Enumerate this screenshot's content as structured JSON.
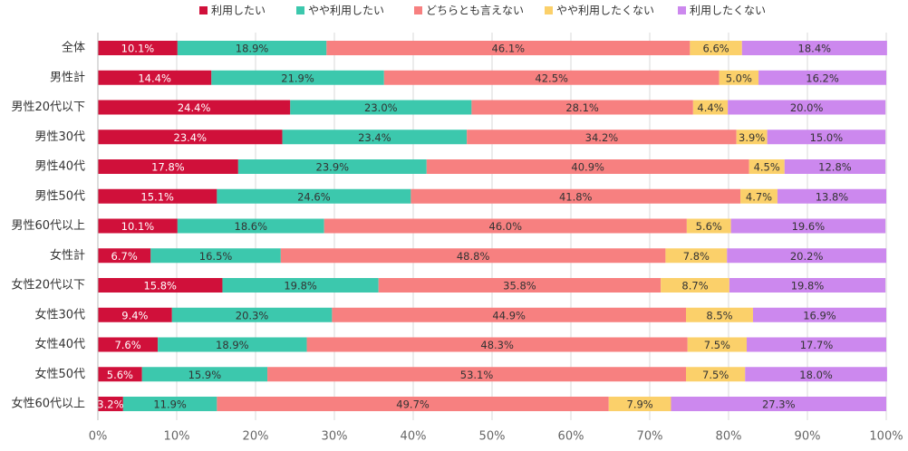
{
  "chart_data": {
    "type": "stacked_bar_horizontal",
    "categories": [
      "全体",
      "男性計",
      "男性20代以下",
      "男性30代",
      "男性40代",
      "男性50代",
      "男性60代以上",
      "女性計",
      "女性20代以下",
      "女性30代",
      "女性40代",
      "女性50代",
      "女性60代以上"
    ],
    "series": [
      {
        "name": "利用したい",
        "color": "#d0103a",
        "values": [
          10.1,
          14.4,
          24.4,
          23.4,
          17.8,
          15.1,
          10.1,
          6.7,
          15.8,
          9.4,
          7.6,
          5.6,
          3.2
        ],
        "value_labels": [
          "10.1%",
          "14.4%",
          "24.4%",
          "23.4%",
          "17.8%",
          "15.1%",
          "10.1%",
          "6.7%",
          "15.8%",
          "9.4%",
          "7.6%",
          "5.6%",
          "3.2%"
        ]
      },
      {
        "name": "やや利用したい",
        "color": "#3cc8ad",
        "values": [
          18.9,
          21.9,
          23.0,
          23.4,
          23.9,
          24.6,
          18.6,
          16.5,
          19.8,
          20.3,
          18.9,
          15.9,
          11.9
        ],
        "value_labels": [
          "18.9%",
          "21.9%",
          "23.0%",
          "23.4%",
          "23.9%",
          "24.6%",
          "18.6%",
          "16.5%",
          "19.8%",
          "20.3%",
          "18.9%",
          "15.9%",
          "11.9%"
        ]
      },
      {
        "name": "どちらとも言えない",
        "color": "#f78080",
        "values": [
          46.1,
          42.5,
          28.1,
          34.2,
          40.9,
          41.8,
          46.0,
          48.8,
          35.8,
          44.9,
          48.3,
          53.1,
          49.7
        ],
        "value_labels": [
          "46.1%",
          "42.5%",
          "28.1%",
          "34.2%",
          "40.9%",
          "41.8%",
          "46.0%",
          "48.8%",
          "35.8%",
          "44.9%",
          "48.3%",
          "53.1%",
          "49.7%"
        ]
      },
      {
        "name": "やや利用したくない",
        "color": "#fbd06a",
        "values": [
          6.6,
          5.0,
          4.4,
          3.9,
          4.5,
          4.7,
          5.6,
          7.8,
          8.7,
          8.5,
          7.5,
          7.5,
          7.9
        ],
        "value_labels": [
          "6.6%",
          "5.0%",
          "4.4%",
          "3.9%",
          "4.5%",
          "4.7%",
          "5.6%",
          "7.8%",
          "8.7%",
          "8.5%",
          "7.5%",
          "7.5%",
          "7.9%"
        ]
      },
      {
        "name": "利用したくない",
        "color": "#cc88ee",
        "values": [
          18.4,
          16.2,
          20.0,
          15.0,
          12.8,
          13.8,
          19.6,
          20.2,
          19.8,
          16.9,
          17.7,
          18.0,
          27.3
        ],
        "value_labels": [
          "18.4%",
          "16.2%",
          "20.0%",
          "15.0%",
          "12.8%",
          "13.8%",
          "19.6%",
          "20.2%",
          "19.8%",
          "16.9%",
          "17.7%",
          "18.0%",
          "27.3%"
        ]
      }
    ],
    "xlim": [
      0,
      100
    ],
    "xticks": [
      {
        "value": 0,
        "label": "0%"
      },
      {
        "value": 10,
        "label": "10%"
      },
      {
        "value": 20,
        "label": "20%"
      },
      {
        "value": 30,
        "label": "30%"
      },
      {
        "value": 40,
        "label": "40%"
      },
      {
        "value": 50,
        "label": "50%"
      },
      {
        "value": 60,
        "label": "60%"
      },
      {
        "value": 70,
        "label": "70%"
      },
      {
        "value": 80,
        "label": "80%"
      },
      {
        "value": 90,
        "label": "90%"
      },
      {
        "value": 100,
        "label": "100%"
      }
    ],
    "grid": true,
    "legend": "top"
  }
}
